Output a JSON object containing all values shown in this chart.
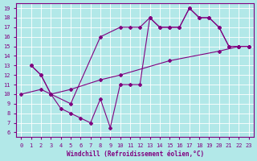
{
  "xlabel": "Windchill (Refroidissement éolien,°C)",
  "ylabel": "",
  "bg_color": "#b2e8e8",
  "line_color": "#800080",
  "grid_color": "#ffffff",
  "xlim": [
    -0.5,
    23.5
  ],
  "ylim": [
    5.5,
    19.5
  ],
  "xticks": [
    0,
    1,
    2,
    3,
    4,
    5,
    6,
    7,
    8,
    9,
    10,
    11,
    12,
    13,
    14,
    15,
    16,
    17,
    18,
    19,
    20,
    21,
    22,
    23
  ],
  "yticks": [
    6,
    7,
    8,
    9,
    10,
    11,
    12,
    13,
    14,
    15,
    16,
    17,
    18,
    19
  ],
  "line1_x": [
    1,
    2,
    3,
    4,
    5,
    6,
    7,
    8,
    9,
    10,
    11,
    12,
    13,
    14,
    15,
    16,
    17,
    18,
    19,
    20,
    21,
    22,
    23
  ],
  "line1_y": [
    13,
    12,
    10,
    8.5,
    8,
    7.5,
    7,
    9.5,
    6.5,
    11,
    11,
    11,
    18,
    17,
    17,
    17,
    19,
    18,
    18,
    17,
    15,
    15,
    15
  ],
  "line2_x": [
    1,
    2,
    3,
    5,
    8,
    10,
    11,
    12,
    13,
    14,
    15,
    16,
    17,
    18,
    19,
    20,
    21,
    22,
    23
  ],
  "line2_y": [
    13,
    12,
    10,
    9,
    16,
    17,
    17,
    17,
    18,
    17,
    17,
    17,
    19,
    18,
    18,
    17,
    15,
    15,
    15
  ],
  "line3_x": [
    0,
    2,
    3,
    5,
    8,
    10,
    15,
    20,
    22,
    23
  ],
  "line3_y": [
    10,
    10.5,
    10,
    10.5,
    11.5,
    12,
    13.5,
    14.5,
    15,
    15
  ],
  "marker": "D",
  "markersize": 2,
  "linewidth": 0.8,
  "tick_labelsize": 5,
  "xlabel_fontsize": 5.5
}
